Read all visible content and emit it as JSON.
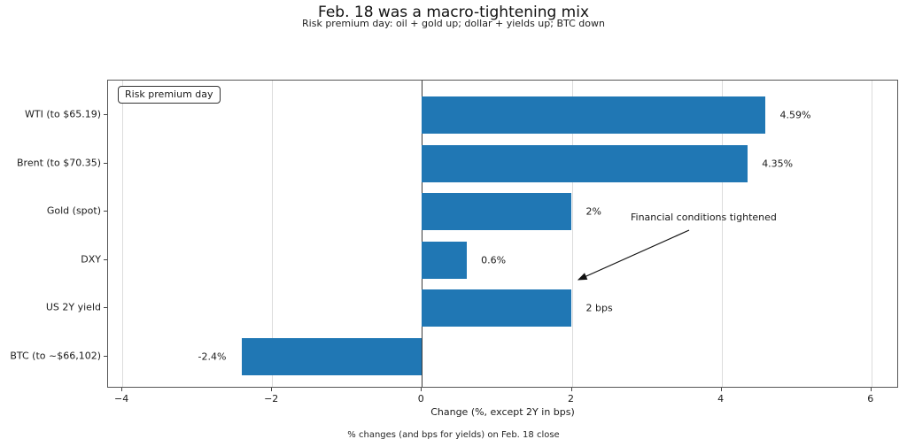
{
  "title": "Feb. 18 was a macro-tightening mix",
  "subtitle": "Risk premium day: oil + gold up; dollar + yields up; BTC down",
  "footnote": "% changes (and bps for yields) on Feb. 18 close",
  "legend": {
    "label": "Risk premium day"
  },
  "annotation": {
    "text": "Financial conditions tightened"
  },
  "chart_data": {
    "type": "bar",
    "orientation": "horizontal",
    "title": "Feb. 18 was a macro-tightening mix",
    "subtitle": "Risk premium day: oil + gold up; dollar + yields up; BTC down",
    "categories": [
      "WTI (to $65.19)",
      "Brent (to $70.35)",
      "Gold (spot)",
      "DXY",
      "US 2Y yield",
      "BTC (to ~$66,102)"
    ],
    "values": [
      4.59,
      4.35,
      2,
      0.6,
      2,
      -2.4
    ],
    "value_labels": [
      "4.59%",
      "4.35%",
      "2%",
      "0.6%",
      "2 bps",
      "-2.4%"
    ],
    "xlabel": "Change (%, except 2Y in bps)",
    "ylabel": "",
    "xticks": [
      -4,
      -2,
      0,
      2,
      4,
      6
    ],
    "xtick_labels": [
      "−4",
      "−2",
      "0",
      "2",
      "4",
      "6"
    ],
    "xlim": [
      -4.19,
      6.37
    ],
    "zero_line": 0,
    "grid": true,
    "bar_color": "#2077b4",
    "gridline_color": "#dcdcdc",
    "legend_position": "upper left",
    "legend_label": "Risk premium day",
    "annotation_text": "Financial conditions tightened",
    "footnote": "% changes (and bps for yields) on Feb. 18 close"
  }
}
